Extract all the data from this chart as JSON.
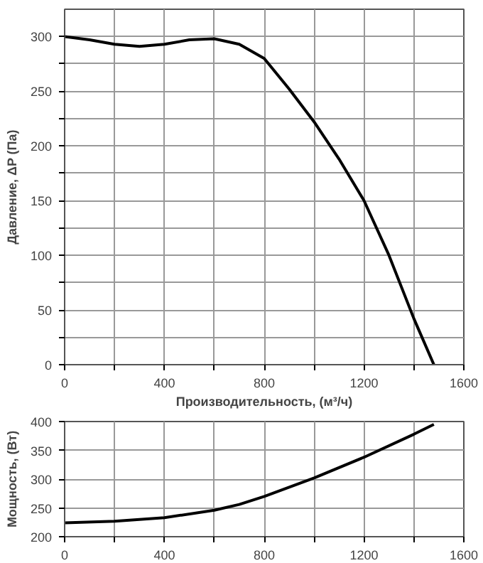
{
  "chart_data": [
    {
      "type": "line",
      "xlabel": "Производительность, (м³/ч)",
      "ylabel": "Давление, ΔP (Па)",
      "x": [
        0,
        100,
        200,
        300,
        400,
        500,
        600,
        700,
        800,
        900,
        1000,
        1100,
        1200,
        1300,
        1400,
        1480
      ],
      "series": [
        {
          "color": "#000000",
          "values": [
            300,
            297,
            293,
            291,
            293,
            297,
            298,
            293,
            280,
            252,
            222,
            188,
            150,
            100,
            42,
            0
          ]
        }
      ],
      "xlim": [
        0,
        1600
      ],
      "xticks": [
        0,
        {
          "value": 200,
          "label": null
        },
        400,
        {
          "value": 600,
          "label": null
        },
        800,
        {
          "value": 1000,
          "label": null
        },
        1200,
        {
          "value": 1400,
          "label": null
        },
        1600
      ],
      "ylim": [
        0,
        325
      ],
      "yticks": [
        0,
        {
          "value": 25,
          "label": null
        },
        50,
        {
          "value": 75,
          "label": null
        },
        100,
        {
          "value": 125,
          "label": null
        },
        150,
        {
          "value": 175,
          "label": null
        },
        200,
        {
          "value": 225,
          "label": null
        },
        250,
        {
          "value": 275,
          "label": null
        },
        300
      ],
      "grid": true,
      "marker": "none",
      "line_style": "solid"
    },
    {
      "type": "line",
      "ylabel": "Мощность, (Вт)",
      "x": [
        0,
        200,
        400,
        600,
        700,
        800,
        1000,
        1200,
        1400,
        1480
      ],
      "series": [
        {
          "color": "#000000",
          "values": [
            224,
            227,
            233,
            246,
            256,
            270,
            302,
            338,
            378,
            395
          ]
        }
      ],
      "xlim": [
        0,
        1600
      ],
      "xticks": [
        0,
        {
          "value": 200,
          "label": null
        },
        400,
        {
          "value": 600,
          "label": null
        },
        800,
        {
          "value": 1000,
          "label": null
        },
        1200,
        {
          "value": 1400,
          "label": null
        },
        1600
      ],
      "ylim": [
        200,
        400
      ],
      "yticks": [
        200,
        250,
        300,
        350,
        400
      ],
      "grid": true,
      "marker": "none",
      "line_style": "solid"
    }
  ]
}
